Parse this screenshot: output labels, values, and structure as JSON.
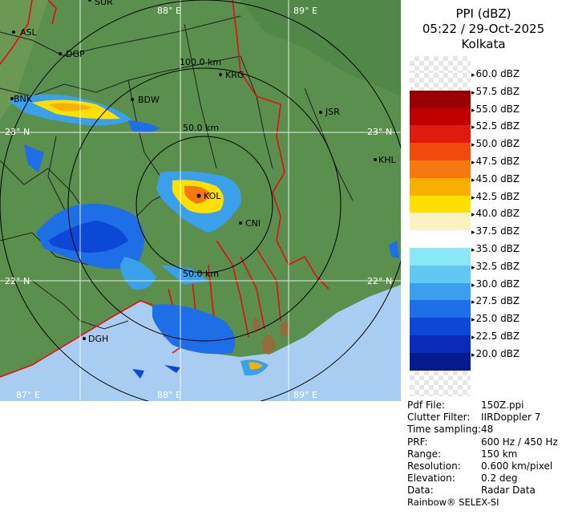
{
  "header": {
    "product": "PPI (dBZ)",
    "datetime": "05:22 / 29-Oct-2025",
    "station": "Kolkata"
  },
  "colors": {
    "land": "#5a8f4e",
    "sea": "#a9cdf0",
    "boundary": "#e01010",
    "district": "#202020"
  },
  "map": {
    "lon_labels": [
      "88° E",
      "89° E"
    ],
    "lat_labels": [
      "23° N",
      "22° N"
    ],
    "bottom_lon_labels": [
      "87° E",
      "88° E",
      "89° E"
    ],
    "range_labels": [
      "100.0 km",
      "50.0 km",
      "50.0 km"
    ],
    "cities": [
      "ASL",
      "DGP",
      "BNK",
      "BDW",
      "KRG",
      "JSR",
      "KHL",
      "DGH",
      "CNI",
      "SUR",
      "KOL"
    ]
  },
  "color_scale": [
    {
      "label": "60.0 dBZ",
      "color": "checker"
    },
    {
      "label": "57.5 dBZ",
      "color": "#9b0000"
    },
    {
      "label": "55.0 dBZ",
      "color": "#c00000"
    },
    {
      "label": "52.5 dBZ",
      "color": "#e01a10"
    },
    {
      "label": "50.0 dBZ",
      "color": "#f04a0e"
    },
    {
      "label": "47.5 dBZ",
      "color": "#f47a10"
    },
    {
      "label": "45.0 dBZ",
      "color": "#f8b000"
    },
    {
      "label": "42.5 dBZ",
      "color": "#fde000"
    },
    {
      "label": "40.0 dBZ",
      "color": "#faf2c0"
    },
    {
      "label": "37.5 dBZ",
      "color": "#ffffff"
    },
    {
      "label": "35.0 dBZ",
      "color": "#8ae8f8"
    },
    {
      "label": "32.5 dBZ",
      "color": "#62c8f2"
    },
    {
      "label": "30.0 dBZ",
      "color": "#3aa0ec"
    },
    {
      "label": "27.5 dBZ",
      "color": "#1e6ee8"
    },
    {
      "label": "25.0 dBZ",
      "color": "#0b48d8"
    },
    {
      "label": "22.5 dBZ",
      "color": "#0a2bb8"
    },
    {
      "label": "20.0 dBZ",
      "color": "#061a90"
    }
  ],
  "info": [
    {
      "key": "Pdf File:",
      "value": "150Z.ppi"
    },
    {
      "key": "Clutter Filter:",
      "value": "IIRDoppler 7"
    },
    {
      "key": "Time sampling:",
      "value": "48"
    },
    {
      "key": "PRF:",
      "value": "600 Hz / 450 Hz"
    },
    {
      "key": "Range:",
      "value": "150 km"
    },
    {
      "key": "Resolution:",
      "value": "0.600 km/pixel"
    },
    {
      "key": "Elevation:",
      "value": "0.2 deg"
    },
    {
      "key": "Data:",
      "value": "Radar Data"
    }
  ],
  "footer": "Rainbow® SELEX-SI"
}
